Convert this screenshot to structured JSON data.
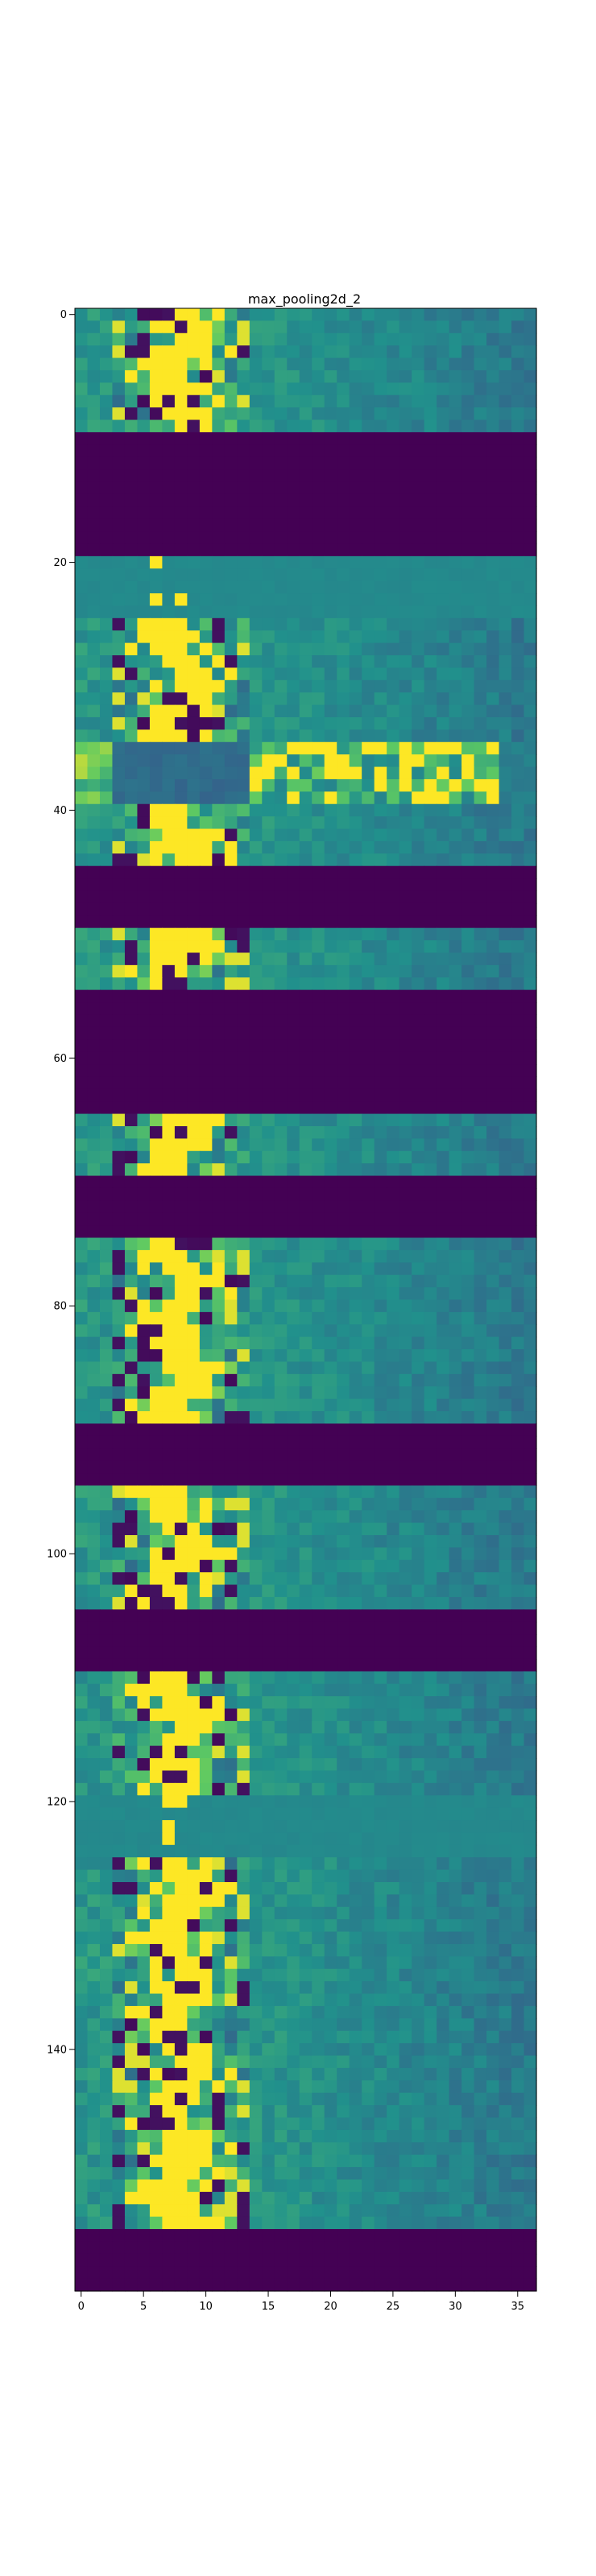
{
  "chart_data": {
    "type": "heatmap",
    "title": "max_pooling2d_2",
    "xlabel": "",
    "ylabel": "",
    "xlim": [
      -0.5,
      36.5
    ],
    "ylim": [
      159.5,
      -0.5
    ],
    "x_ticks": [
      0,
      5,
      10,
      15,
      20,
      25,
      30,
      35
    ],
    "y_ticks": [
      0,
      20,
      40,
      60,
      80,
      100,
      120,
      140
    ],
    "x_tick_labels": [
      "0",
      "5",
      "10",
      "15",
      "20",
      "25",
      "30",
      "35"
    ],
    "y_tick_labels": [
      "0",
      "20",
      "40",
      "60",
      "80",
      "100",
      "120",
      "140"
    ],
    "grid": false,
    "colormap": "viridis",
    "dead_color": "#440154",
    "bright_color": "#fde725",
    "columns": 37,
    "rows": 160,
    "band_height_rows": 5,
    "bands": [
      {
        "start_row": 0,
        "kind": "active",
        "seed": 3
      },
      {
        "start_row": 5,
        "kind": "active",
        "seed": 7
      },
      {
        "start_row": 10,
        "kind": "dead"
      },
      {
        "start_row": 15,
        "kind": "dead"
      },
      {
        "start_row": 20,
        "kind": "flat",
        "seed": 11
      },
      {
        "start_row": 25,
        "kind": "active",
        "seed": 13
      },
      {
        "start_row": 30,
        "kind": "active",
        "seed": 17
      },
      {
        "start_row": 35,
        "kind": "wide",
        "seed": 19
      },
      {
        "start_row": 40,
        "kind": "active",
        "seed": 23
      },
      {
        "start_row": 45,
        "kind": "dead"
      },
      {
        "start_row": 50,
        "kind": "active",
        "seed": 29
      },
      {
        "start_row": 55,
        "kind": "dead"
      },
      {
        "start_row": 60,
        "kind": "dead"
      },
      {
        "start_row": 65,
        "kind": "active",
        "seed": 31
      },
      {
        "start_row": 70,
        "kind": "dead"
      },
      {
        "start_row": 75,
        "kind": "active",
        "seed": 37
      },
      {
        "start_row": 80,
        "kind": "active",
        "seed": 41
      },
      {
        "start_row": 85,
        "kind": "active",
        "seed": 43
      },
      {
        "start_row": 90,
        "kind": "dead"
      },
      {
        "start_row": 95,
        "kind": "active",
        "seed": 47
      },
      {
        "start_row": 100,
        "kind": "active",
        "seed": 53
      },
      {
        "start_row": 105,
        "kind": "dead"
      },
      {
        "start_row": 110,
        "kind": "active",
        "seed": 59
      },
      {
        "start_row": 115,
        "kind": "active",
        "seed": 61
      },
      {
        "start_row": 120,
        "kind": "flat",
        "seed": 67
      },
      {
        "start_row": 125,
        "kind": "active",
        "seed": 71
      },
      {
        "start_row": 130,
        "kind": "active",
        "seed": 73
      },
      {
        "start_row": 135,
        "kind": "active",
        "seed": 79
      },
      {
        "start_row": 140,
        "kind": "active",
        "seed": 83
      },
      {
        "start_row": 145,
        "kind": "active",
        "seed": 89
      },
      {
        "start_row": 150,
        "kind": "active",
        "seed": 97
      },
      {
        "start_row": 155,
        "kind": "dead"
      }
    ]
  }
}
